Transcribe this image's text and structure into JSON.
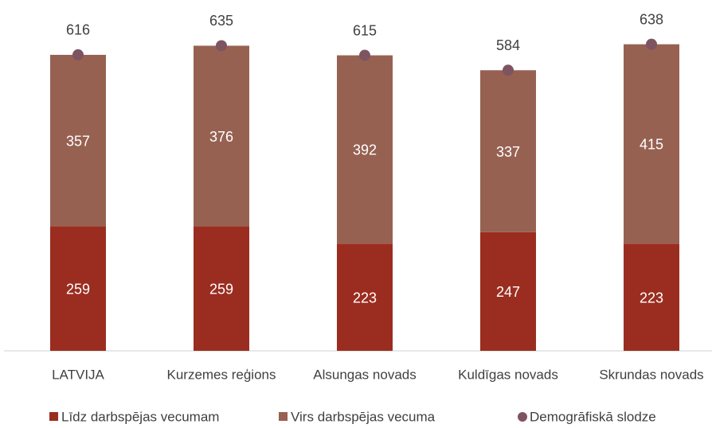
{
  "chart_data": {
    "type": "bar",
    "stacked": true,
    "categories": [
      "LATVIJA",
      "Kurzemes reģions",
      "Alsungas novads",
      "Kuldīgas novads",
      "Skrundas novads"
    ],
    "series": [
      {
        "name": "Līdz darbspējas vecumam",
        "color": "#9b2d20",
        "values": [
          259,
          259,
          223,
          247,
          223
        ]
      },
      {
        "name": "Virs darbspējas vecuma",
        "color": "#976152",
        "values": [
          357,
          376,
          392,
          337,
          415
        ]
      },
      {
        "name": "Demogrāfiskā slodze",
        "color": "#7e5461",
        "type": "scatter",
        "values": [
          616,
          635,
          615,
          584,
          638
        ]
      }
    ]
  }
}
